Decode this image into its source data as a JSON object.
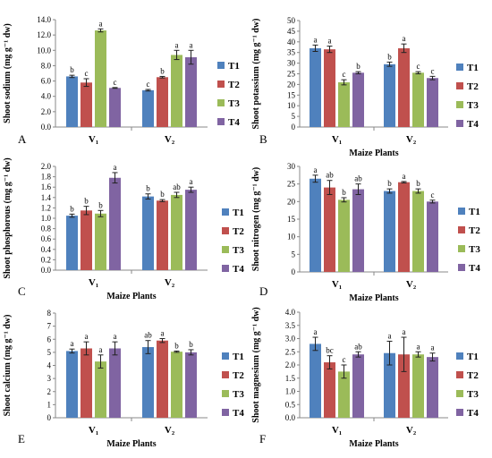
{
  "figure": {
    "legend_labels": [
      "T1",
      "T2",
      "T3",
      "T4"
    ],
    "colors": {
      "T1": "#4f81bd",
      "T2": "#c0504d",
      "T3": "#9bbb59",
      "T4": "#8064a2"
    }
  },
  "chart_data": [
    {
      "panel": "A",
      "type": "bar",
      "ylabel": "Shoot sodium (mg g⁻¹ dw)",
      "xlabel": "",
      "categories": [
        "V₁",
        "V₂"
      ],
      "ylim": [
        0,
        14
      ],
      "yticks": [
        0,
        2,
        4,
        6,
        8,
        10,
        12,
        14
      ],
      "tick_decimals": 1,
      "series": [
        {
          "name": "T1",
          "values": [
            6.6,
            4.8
          ],
          "errors": [
            0.15,
            0.1
          ],
          "letters": [
            "b",
            "c"
          ]
        },
        {
          "name": "T2",
          "values": [
            5.8,
            6.5
          ],
          "errors": [
            0.5,
            0.1
          ],
          "letters": [
            "c",
            "b"
          ]
        },
        {
          "name": "T3",
          "values": [
            12.6,
            9.4
          ],
          "errors": [
            0.2,
            0.6
          ],
          "letters": [
            "a",
            "a"
          ]
        },
        {
          "name": "T4",
          "values": [
            5.1,
            9.1
          ],
          "errors": [
            0.05,
            0.9
          ],
          "letters": [
            "c",
            "a"
          ]
        }
      ]
    },
    {
      "panel": "B",
      "type": "bar",
      "ylabel": "Shoot potassium (mg g⁻¹ dw)",
      "xlabel": "Maize Plants",
      "categories": [
        "V₁",
        "V₂"
      ],
      "ylim": [
        0,
        50
      ],
      "yticks": [
        0,
        5,
        10,
        15,
        20,
        25,
        30,
        35,
        40,
        45,
        50
      ],
      "tick_decimals": 0,
      "series": [
        {
          "name": "T1",
          "values": [
            37,
            29.5
          ],
          "errors": [
            1.5,
            1
          ],
          "letters": [
            "a",
            "b"
          ]
        },
        {
          "name": "T2",
          "values": [
            36.5,
            37
          ],
          "errors": [
            1.5,
            2
          ],
          "letters": [
            "a",
            "a"
          ]
        },
        {
          "name": "T3",
          "values": [
            21,
            25.5
          ],
          "errors": [
            1.2,
            0.5
          ],
          "letters": [
            "c",
            "c"
          ]
        },
        {
          "name": "T4",
          "values": [
            25.5,
            23
          ],
          "errors": [
            0.5,
            0.8
          ],
          "letters": [
            "b",
            "c"
          ]
        }
      ]
    },
    {
      "panel": "C",
      "type": "bar",
      "ylabel": "Shoot phosphorous (mg g⁻¹ dw)",
      "xlabel": "Maize Plants",
      "categories": [
        "V₁",
        "V₂"
      ],
      "ylim": [
        0,
        2
      ],
      "yticks": [
        0,
        0.2,
        0.4,
        0.6,
        0.8,
        1.0,
        1.2,
        1.4,
        1.6,
        1.8,
        2.0
      ],
      "tick_decimals": 1,
      "series": [
        {
          "name": "T1",
          "values": [
            1.05,
            1.42
          ],
          "errors": [
            0.03,
            0.05
          ],
          "letters": [
            "b",
            "b"
          ]
        },
        {
          "name": "T2",
          "values": [
            1.15,
            1.34
          ],
          "errors": [
            0.08,
            0.02
          ],
          "letters": [
            "b",
            "b"
          ]
        },
        {
          "name": "T3",
          "values": [
            1.09,
            1.45
          ],
          "errors": [
            0.06,
            0.05
          ],
          "letters": [
            "b",
            "ab"
          ]
        },
        {
          "name": "T4",
          "values": [
            1.78,
            1.55
          ],
          "errors": [
            0.1,
            0.05
          ],
          "letters": [
            "a",
            "a"
          ]
        }
      ]
    },
    {
      "panel": "D",
      "type": "bar",
      "ylabel": "Shoot nitrogen (mg g⁻¹ dw)",
      "xlabel": "Maize Plants",
      "categories": [
        "V₁",
        "V₂"
      ],
      "ylim": [
        0,
        30
      ],
      "yticks": [
        0,
        5,
        10,
        15,
        20,
        25,
        30
      ],
      "tick_decimals": 0,
      "series": [
        {
          "name": "T1",
          "values": [
            26.5,
            23
          ],
          "errors": [
            1,
            0.6
          ],
          "letters": [
            "a",
            "b"
          ]
        },
        {
          "name": "T2",
          "values": [
            24,
            25.5
          ],
          "errors": [
            2,
            0.2
          ],
          "letters": [
            "ab",
            "a"
          ]
        },
        {
          "name": "T3",
          "values": [
            20.5,
            23
          ],
          "errors": [
            0.6,
            0.6
          ],
          "letters": [
            "b",
            "b"
          ]
        },
        {
          "name": "T4",
          "values": [
            23.5,
            20
          ],
          "errors": [
            1.5,
            0.4
          ],
          "letters": [
            "ab",
            "c"
          ]
        }
      ]
    },
    {
      "panel": "E",
      "type": "bar",
      "ylabel": "Shoot calcium (mg g⁻¹ dw)",
      "xlabel": "Maize Plants",
      "categories": [
        "V₁",
        "V₂"
      ],
      "ylim": [
        0,
        8
      ],
      "yticks": [
        0,
        1,
        2,
        3,
        4,
        5,
        6,
        7,
        8
      ],
      "tick_decimals": 0,
      "series": [
        {
          "name": "T1",
          "values": [
            5.1,
            5.4
          ],
          "errors": [
            0.15,
            0.5
          ],
          "letters": [
            "a",
            "ab"
          ]
        },
        {
          "name": "T2",
          "values": [
            5.3,
            5.9
          ],
          "errors": [
            0.5,
            0.15
          ],
          "letters": [
            "a",
            "a"
          ]
        },
        {
          "name": "T3",
          "values": [
            4.3,
            5.05
          ],
          "errors": [
            0.5,
            0.05
          ],
          "letters": [
            "a",
            "b"
          ]
        },
        {
          "name": "T4",
          "values": [
            5.3,
            5.0
          ],
          "errors": [
            0.5,
            0.2
          ],
          "letters": [
            "a",
            "b"
          ]
        }
      ]
    },
    {
      "panel": "F",
      "type": "bar",
      "ylabel": "Shoot magnesium (mg g⁻¹ dw)",
      "xlabel": "Maize Plants",
      "categories": [
        "V₁",
        "V₂"
      ],
      "ylim": [
        0,
        4
      ],
      "yticks": [
        0,
        0.5,
        1.0,
        1.5,
        2.0,
        2.5,
        3.0,
        3.5,
        4.0
      ],
      "tick_decimals": 1,
      "series": [
        {
          "name": "T1",
          "values": [
            2.8,
            2.45
          ],
          "errors": [
            0.25,
            0.45
          ],
          "letters": [
            "a",
            "a"
          ]
        },
        {
          "name": "T2",
          "values": [
            2.1,
            2.4
          ],
          "errors": [
            0.25,
            0.65
          ],
          "letters": [
            "bc",
            "a"
          ]
        },
        {
          "name": "T3",
          "values": [
            1.75,
            2.4
          ],
          "errors": [
            0.25,
            0.1
          ],
          "letters": [
            "c",
            "a"
          ]
        },
        {
          "name": "T4",
          "values": [
            2.4,
            2.3
          ],
          "errors": [
            0.1,
            0.15
          ],
          "letters": [
            "ab",
            "a"
          ]
        }
      ]
    }
  ]
}
